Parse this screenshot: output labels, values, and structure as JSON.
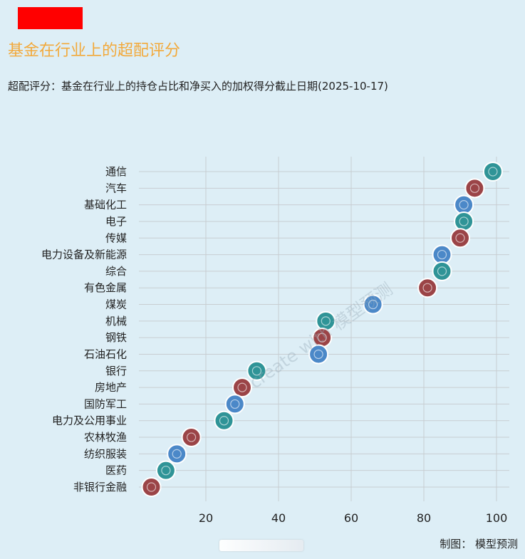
{
  "header": {
    "title": "基金在行业上的超配评分",
    "subtitle": "超配评分：基金在行业上的持仓占比和净买入的加权得分截止日期(2025-10-17)"
  },
  "watermark": {
    "text": "create with 模型预测"
  },
  "footer": {
    "credit": "制图： 模型预测"
  },
  "colors": {
    "background": "#ddeef6",
    "title": "#f2a93b",
    "grid": "#c8cdd1",
    "marker_teal": "#2f9497",
    "marker_red": "#9b4447",
    "marker_blue": "#4b88c8",
    "marker_outline": "#ffffff"
  },
  "chart_data": {
    "type": "scatter",
    "title": "基金在行业上的超配评分",
    "subtitle": "超配评分：基金在行业上的持仓占比和净买入的加权得分截止日期(2025-10-17)",
    "xlabel": "",
    "ylabel": "",
    "xlim": [
      0,
      102
    ],
    "xticks": [
      20,
      40,
      60,
      80,
      100
    ],
    "grid": true,
    "legend": "none",
    "categories": [
      "通信",
      "汽车",
      "基础化工",
      "电子",
      "传媒",
      "电力设备及新能源",
      "综合",
      "有色金属",
      "煤炭",
      "机械",
      "钢铁",
      "石油石化",
      "银行",
      "房地产",
      "国防军工",
      "电力及公用事业",
      "农林牧渔",
      "纺织服装",
      "医药",
      "非银行金融"
    ],
    "values": [
      99,
      94,
      91,
      91,
      90,
      85,
      85,
      81,
      66,
      53,
      52,
      51,
      34,
      30,
      28,
      25,
      16,
      12,
      9,
      5
    ],
    "colors": [
      "#2f9497",
      "#9b4447",
      "#4b88c8",
      "#2f9497",
      "#9b4447",
      "#4b88c8",
      "#2f9497",
      "#9b4447",
      "#4b88c8",
      "#2f9497",
      "#9b4447",
      "#4b88c8",
      "#2f9497",
      "#9b4447",
      "#4b88c8",
      "#2f9497",
      "#9b4447",
      "#4b88c8",
      "#2f9497",
      "#9b4447"
    ]
  }
}
